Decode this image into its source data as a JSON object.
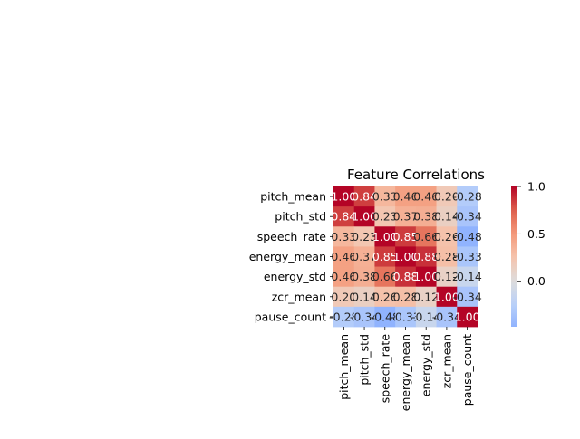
{
  "chart_data": {
    "type": "heatmap",
    "title": "Feature Correlations",
    "features": [
      "pitch_mean",
      "pitch_std",
      "speech_rate",
      "energy_mean",
      "energy_std",
      "zcr_mean",
      "pause_count"
    ],
    "matrix": [
      [
        1.0,
        0.84,
        0.33,
        0.46,
        0.46,
        0.2,
        -0.28
      ],
      [
        0.84,
        1.0,
        0.23,
        0.37,
        0.38,
        0.14,
        -0.34
      ],
      [
        0.33,
        0.23,
        1.0,
        0.85,
        0.66,
        0.26,
        -0.48
      ],
      [
        0.46,
        0.37,
        0.85,
        1.0,
        0.88,
        0.28,
        -0.33
      ],
      [
        0.46,
        0.38,
        0.66,
        0.88,
        1.0,
        0.12,
        -0.14
      ],
      [
        0.2,
        0.14,
        0.26,
        0.28,
        0.12,
        1.0,
        -0.34
      ],
      [
        -0.28,
        -0.34,
        -0.48,
        -0.33,
        -0.14,
        -0.34,
        1.0
      ]
    ],
    "annotations_format": "2 decimals",
    "colormap": "coolwarm",
    "vmin": -0.48,
    "vmax": 1.0,
    "center": 0,
    "colorbar_ticks": [
      1.0,
      0.5,
      0.0
    ],
    "colorbar_tick_labels": [
      "1.0",
      "0.5",
      "0.0"
    ]
  }
}
